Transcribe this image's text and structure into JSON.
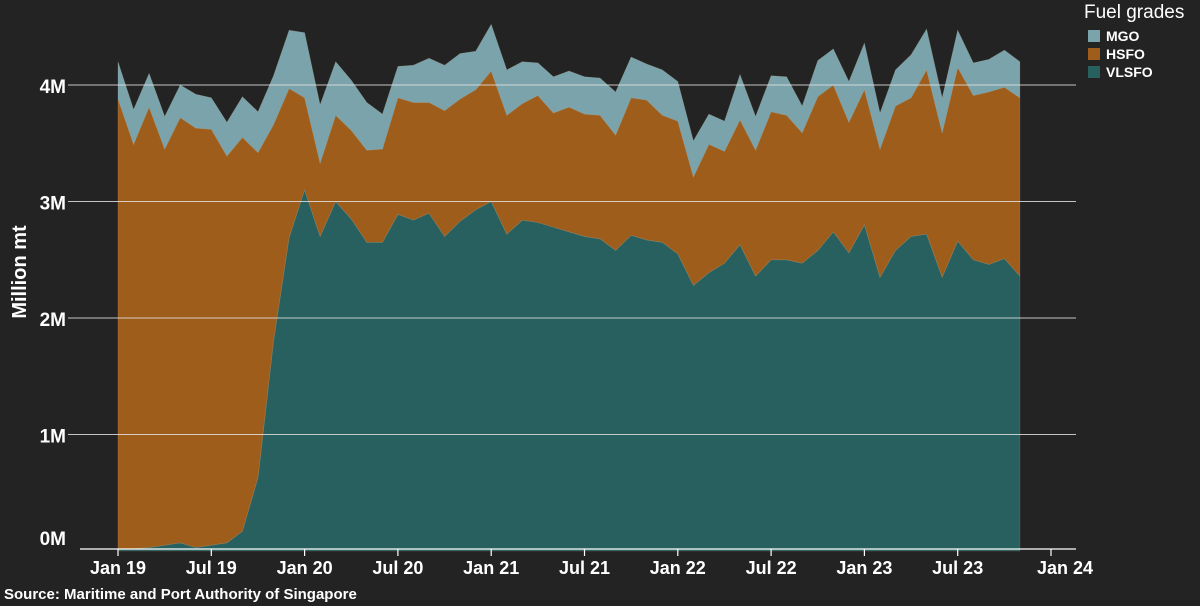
{
  "chart_data": {
    "type": "area",
    "stacked": true,
    "title": "",
    "xlabel": "",
    "ylabel": "Million mt",
    "ylim": [
      0,
      4.5
    ],
    "yticks": [
      0,
      1,
      2,
      3,
      4
    ],
    "ytick_labels": [
      "0M",
      "1M",
      "2M",
      "3M",
      "4M"
    ],
    "xtick_labels": [
      "Jan 19",
      "Jul 19",
      "Jan 20",
      "Jul 20",
      "Jan 21",
      "Jul 21",
      "Jan 22",
      "Jul 22",
      "Jan 23",
      "Jul 23",
      "Jan 24"
    ],
    "xtick_month_index": [
      0,
      6,
      12,
      18,
      24,
      30,
      36,
      42,
      48,
      54,
      60
    ],
    "x_start": "Jan 2019",
    "grid": true,
    "legend_title": "Fuel grades",
    "legend_position": "top-right",
    "series": [
      {
        "name": "VLSFO",
        "color": "#27605e",
        "values": [
          0.02,
          0.02,
          0.03,
          0.05,
          0.07,
          0.03,
          0.05,
          0.07,
          0.17,
          0.63,
          1.8,
          2.69,
          3.1,
          2.7,
          3.0,
          2.85,
          2.65,
          2.65,
          2.89,
          2.84,
          2.9,
          2.7,
          2.83,
          2.93,
          3.0,
          2.72,
          2.84,
          2.82,
          2.78,
          2.74,
          2.7,
          2.68,
          2.58,
          2.71,
          2.67,
          2.65,
          2.55,
          2.28,
          2.39,
          2.47,
          2.63,
          2.36,
          2.5,
          2.5,
          2.47,
          2.58,
          2.74,
          2.56,
          2.8,
          2.35,
          2.58,
          2.7,
          2.72,
          2.35,
          2.66,
          2.5,
          2.46,
          2.51,
          2.36
        ]
      },
      {
        "name": "HSFO",
        "color": "#9f5d1b",
        "values": [
          3.86,
          3.47,
          3.78,
          3.4,
          3.65,
          3.6,
          3.57,
          3.32,
          3.38,
          2.79,
          1.86,
          1.28,
          0.79,
          0.63,
          0.74,
          0.76,
          0.79,
          0.8,
          1.0,
          1.01,
          0.95,
          1.08,
          1.05,
          1.03,
          1.12,
          1.02,
          1.0,
          1.09,
          0.98,
          1.07,
          1.05,
          1.06,
          0.99,
          1.18,
          1.2,
          1.09,
          1.14,
          0.93,
          1.1,
          0.96,
          1.07,
          1.08,
          1.27,
          1.24,
          1.12,
          1.32,
          1.26,
          1.12,
          1.16,
          1.1,
          1.24,
          1.19,
          1.41,
          1.24,
          1.49,
          1.41,
          1.48,
          1.47,
          1.53
        ]
      },
      {
        "name": "MGO",
        "color": "#7aa3ab",
        "values": [
          0.32,
          0.3,
          0.29,
          0.28,
          0.28,
          0.29,
          0.27,
          0.29,
          0.35,
          0.35,
          0.42,
          0.5,
          0.56,
          0.5,
          0.46,
          0.43,
          0.41,
          0.3,
          0.27,
          0.32,
          0.38,
          0.39,
          0.39,
          0.33,
          0.4,
          0.39,
          0.36,
          0.28,
          0.31,
          0.31,
          0.32,
          0.32,
          0.37,
          0.35,
          0.31,
          0.39,
          0.34,
          0.31,
          0.26,
          0.26,
          0.39,
          0.29,
          0.31,
          0.33,
          0.23,
          0.31,
          0.31,
          0.35,
          0.4,
          0.31,
          0.31,
          0.37,
          0.35,
          0.3,
          0.32,
          0.28,
          0.28,
          0.32,
          0.31
        ]
      }
    ]
  },
  "source": "Source: Maritime and Port Authority of Singapore"
}
